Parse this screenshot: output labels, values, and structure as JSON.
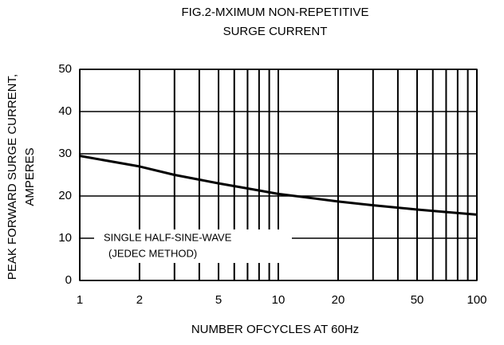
{
  "chart_data": {
    "type": "line",
    "title": [
      "FIG.2-MXIMUM NON-REPETITIVE",
      "SURGE CURRENT"
    ],
    "ylabel": [
      "PEAK FORWARD SURGE CURRENT,",
      "AMPERES"
    ],
    "xlabel": "NUMBER OFCYCLES AT 60Hz",
    "annotations": [
      "SINGLE HALF-SINE-WAVE",
      "(JEDEC METHOD)"
    ],
    "xscale": "log",
    "x": [
      1,
      2,
      3,
      5,
      7,
      10,
      20,
      30,
      50,
      70,
      100
    ],
    "series": [
      {
        "color": "#000000",
        "values": [
          29.5,
          27,
          25,
          23,
          21.8,
          20.5,
          18.7,
          17.8,
          16.8,
          16.2,
          15.6
        ]
      }
    ],
    "xlim": [
      1,
      100
    ],
    "xticks": [
      1,
      2,
      5,
      10,
      20,
      50,
      100
    ],
    "xminor": [
      3,
      4,
      6,
      7,
      8,
      9,
      30,
      40,
      60,
      70,
      80,
      90
    ],
    "ylim": [
      0,
      50
    ],
    "yticks": [
      0,
      10,
      20,
      30,
      40,
      50
    ],
    "grid": true
  }
}
